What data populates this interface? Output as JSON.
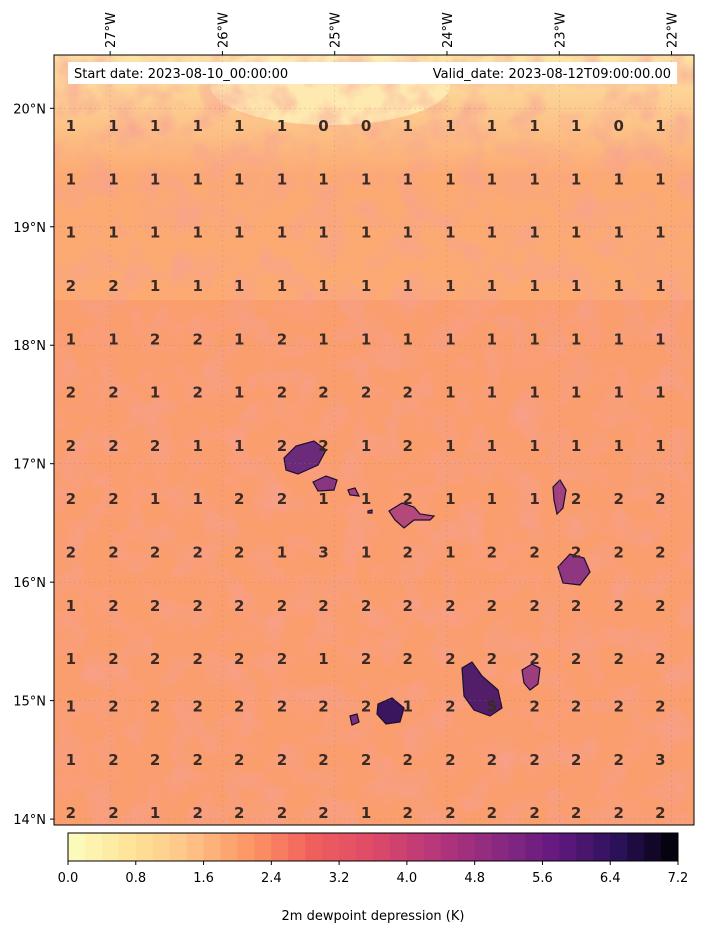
{
  "chart_data": {
    "type": "heatmap",
    "start_date_label": "Start date: 2023-08-10_00:00:00",
    "valid_date_label": "Valid_date: 2023-08-12T09:00:00.00",
    "colorbar_label": "2m dewpoint depression (K)",
    "colorbar_ticks": [
      "0.0",
      "0.8",
      "1.6",
      "2.4",
      "3.2",
      "4.0",
      "4.8",
      "5.6",
      "6.4",
      "7.2"
    ],
    "colorbar_range": [
      0,
      7.2
    ],
    "colormap": "magma_r",
    "lon_ticks": [
      {
        "value": -27,
        "label": "27°W"
      },
      {
        "value": -26,
        "label": "26°W"
      },
      {
        "value": -25,
        "label": "25°W"
      },
      {
        "value": -24,
        "label": "24°W"
      },
      {
        "value": -23,
        "label": "23°W"
      },
      {
        "value": -22,
        "label": "22°W"
      }
    ],
    "lat_ticks": [
      {
        "value": 20,
        "label": "20°N"
      },
      {
        "value": 19,
        "label": "19°N"
      },
      {
        "value": 18,
        "label": "18°N"
      },
      {
        "value": 17,
        "label": "17°N"
      },
      {
        "value": 16,
        "label": "16°N"
      },
      {
        "value": 15,
        "label": "15°N"
      },
      {
        "value": 14,
        "label": "14°N"
      }
    ],
    "lon_range": [
      -27.5,
      -21.8
    ],
    "lat_range": [
      13.95,
      20.45
    ],
    "grid_lons": [
      -27.35,
      -26.97,
      -26.6,
      -26.22,
      -25.85,
      -25.47,
      -25.1,
      -24.72,
      -24.35,
      -23.97,
      -23.6,
      -23.22,
      -22.85,
      -22.47,
      -22.1
    ],
    "grid_lats": [
      19.85,
      19.4,
      18.95,
      18.5,
      18.05,
      17.6,
      17.15,
      16.7,
      16.25,
      15.8,
      15.35,
      14.95,
      14.5,
      14.05
    ],
    "values": [
      [
        1,
        1,
        1,
        1,
        1,
        1,
        0,
        0,
        1,
        1,
        1,
        1,
        1,
        0,
        1
      ],
      [
        1,
        1,
        1,
        1,
        1,
        1,
        1,
        1,
        1,
        1,
        1,
        1,
        1,
        1,
        1
      ],
      [
        1,
        1,
        1,
        1,
        1,
        1,
        1,
        1,
        1,
        1,
        1,
        1,
        1,
        1,
        1
      ],
      [
        2,
        2,
        1,
        1,
        1,
        1,
        1,
        1,
        1,
        1,
        1,
        1,
        1,
        1,
        1
      ],
      [
        1,
        1,
        2,
        2,
        1,
        2,
        1,
        1,
        1,
        1,
        1,
        1,
        1,
        1,
        1
      ],
      [
        2,
        2,
        1,
        2,
        1,
        2,
        2,
        2,
        2,
        1,
        1,
        1,
        1,
        1,
        1
      ],
      [
        2,
        2,
        2,
        1,
        1,
        2,
        2,
        1,
        2,
        1,
        1,
        1,
        1,
        1,
        1
      ],
      [
        2,
        2,
        1,
        1,
        2,
        2,
        1,
        1,
        2,
        1,
        1,
        1,
        2,
        2,
        2
      ],
      [
        2,
        2,
        2,
        2,
        2,
        1,
        3,
        1,
        2,
        1,
        2,
        2,
        2,
        2,
        2
      ],
      [
        1,
        2,
        2,
        2,
        2,
        2,
        2,
        2,
        2,
        2,
        2,
        2,
        2,
        2,
        2
      ],
      [
        1,
        2,
        2,
        2,
        2,
        2,
        1,
        2,
        2,
        2,
        2,
        2,
        2,
        2,
        2
      ],
      [
        1,
        2,
        2,
        2,
        2,
        2,
        2,
        2,
        1,
        2,
        5,
        2,
        2,
        2,
        2
      ],
      [
        1,
        2,
        2,
        2,
        2,
        2,
        2,
        2,
        2,
        2,
        2,
        2,
        2,
        2,
        3
      ],
      [
        2,
        2,
        1,
        2,
        2,
        2,
        2,
        1,
        2,
        2,
        2,
        2,
        2,
        2,
        2
      ]
    ]
  }
}
